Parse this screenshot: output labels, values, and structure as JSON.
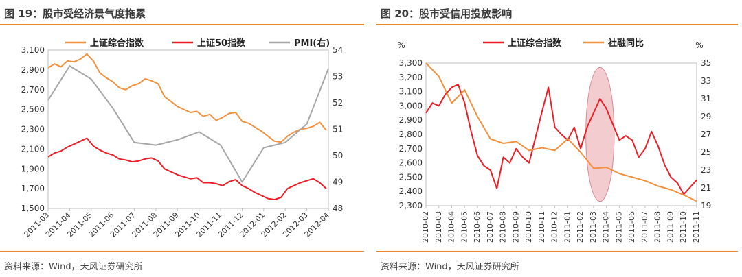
{
  "colors": {
    "orange": "#f2913d",
    "red": "#ee1c24",
    "gray": "#a6a6a6",
    "rule": "#e8872b",
    "ellipse": "#e8a3a7"
  },
  "left": {
    "title": "图 19：股市受经济景气度拖累",
    "source": "资料来源：Wind，天风证券研究所"
  },
  "right": {
    "title": "图 20：股市受信用投放影响",
    "source": "资料来源：Wind，天风证券研究所"
  },
  "chart_data": [
    {
      "type": "line",
      "y_left": {
        "ticks": [
          "1,500",
          "1,700",
          "1,900",
          "2,100",
          "2,300",
          "2,500",
          "2,700",
          "2,900",
          "3,100"
        ],
        "range": [
          1500,
          3100
        ]
      },
      "y_right": {
        "ticks": [
          "48",
          "49",
          "50",
          "51",
          "52",
          "53",
          "54"
        ],
        "range": [
          48,
          54
        ]
      },
      "x_ticks": [
        "2011-03",
        "2011-04",
        "2011-05",
        "2011-06",
        "2011-07",
        "2011-08",
        "2011-09",
        "2011-10",
        "2011-11",
        "2011-12",
        "2012-01",
        "2012-02",
        "2012-03",
        "2012-04"
      ],
      "x_range": [
        0,
        13
      ],
      "series": [
        {
          "name": "上证综合指数",
          "axis": "left",
          "color": "#f2913d",
          "x": [
            0,
            0.3,
            0.6,
            0.9,
            1.2,
            1.5,
            1.8,
            2.1,
            2.4,
            2.7,
            3.0,
            3.3,
            3.6,
            3.9,
            4.2,
            4.5,
            4.8,
            5.1,
            5.4,
            5.7,
            6.0,
            6.3,
            6.6,
            6.9,
            7.2,
            7.5,
            7.8,
            8.1,
            8.4,
            8.7,
            9.0,
            9.3,
            9.6,
            9.9,
            10.2,
            10.5,
            10.8,
            11.1,
            11.4,
            11.7,
            12.0,
            12.3,
            12.6,
            12.9
          ],
          "values": [
            2920,
            2960,
            2930,
            2990,
            2980,
            3010,
            3060,
            2990,
            2870,
            2820,
            2780,
            2720,
            2700,
            2740,
            2760,
            2810,
            2790,
            2760,
            2630,
            2580,
            2530,
            2500,
            2470,
            2480,
            2430,
            2450,
            2390,
            2420,
            2460,
            2470,
            2380,
            2360,
            2320,
            2280,
            2230,
            2180,
            2170,
            2230,
            2270,
            2300,
            2310,
            2330,
            2370,
            2290
          ]
        },
        {
          "name": "上证50指数",
          "axis": "left",
          "color": "#ee1c24",
          "x": [
            0,
            0.3,
            0.6,
            0.9,
            1.2,
            1.5,
            1.8,
            2.1,
            2.4,
            2.7,
            3.0,
            3.3,
            3.6,
            3.9,
            4.2,
            4.5,
            4.8,
            5.1,
            5.4,
            5.7,
            6.0,
            6.3,
            6.6,
            6.9,
            7.2,
            7.5,
            7.8,
            8.1,
            8.4,
            8.7,
            9.0,
            9.3,
            9.6,
            9.9,
            10.2,
            10.5,
            10.8,
            11.1,
            11.4,
            11.7,
            12.0,
            12.3,
            12.6,
            12.9
          ],
          "values": [
            2020,
            2060,
            2080,
            2120,
            2150,
            2180,
            2210,
            2130,
            2090,
            2060,
            2040,
            2000,
            1990,
            1970,
            1980,
            2000,
            2010,
            1980,
            1900,
            1870,
            1840,
            1820,
            1800,
            1810,
            1760,
            1760,
            1750,
            1730,
            1770,
            1790,
            1730,
            1700,
            1660,
            1630,
            1600,
            1590,
            1610,
            1700,
            1730,
            1760,
            1780,
            1800,
            1760,
            1700
          ]
        },
        {
          "name": "PMI(右)",
          "axis": "right",
          "color": "#a6a6a6",
          "x": [
            0,
            1,
            2,
            3,
            4,
            5,
            6,
            7,
            8,
            9,
            10,
            11,
            12,
            13
          ],
          "values": [
            52.1,
            53.4,
            52.9,
            51.8,
            50.5,
            50.4,
            50.6,
            50.9,
            50.4,
            49.0,
            50.3,
            50.5,
            51.2,
            53.3
          ]
        }
      ]
    },
    {
      "type": "line",
      "y_left": {
        "unit": "%",
        "ticks": [
          "2,300",
          "2,400",
          "2,500",
          "2,600",
          "2,700",
          "2,800",
          "2,900",
          "3,000",
          "3,100",
          "3,200",
          "3,300"
        ],
        "range": [
          2300,
          3300
        ]
      },
      "y_right": {
        "unit": "%",
        "ticks": [
          "19",
          "21",
          "23",
          "25",
          "27",
          "29",
          "31",
          "33",
          "35"
        ],
        "range": [
          19,
          35
        ]
      },
      "x_ticks": [
        "2010-02",
        "2010-03",
        "2010-04",
        "2010-05",
        "2010-06",
        "2010-07",
        "2010-08",
        "2010-09",
        "2010-10",
        "2010-11",
        "2010-12",
        "2011-01",
        "2011-02",
        "2011-03",
        "2011-04",
        "2011-05",
        "2011-06",
        "2011-07",
        "2011-08",
        "2011-09",
        "2011-10",
        "2011-11"
      ],
      "x_range": [
        0,
        21
      ],
      "highlight": {
        "cx": 13.5,
        "cy_value": 2800,
        "rx_months": 1.1,
        "ry_value": 470
      },
      "series": [
        {
          "name": "上证综合指数",
          "axis": "left",
          "color": "#ee1c24",
          "x": [
            0,
            0.5,
            1,
            1.5,
            2,
            2.5,
            3,
            3.5,
            4,
            4.5,
            5,
            5.5,
            6,
            6.5,
            7,
            7.5,
            8,
            8.5,
            9,
            9.5,
            10,
            10.5,
            11,
            11.5,
            12,
            12.5,
            13,
            13.5,
            14,
            14.5,
            15,
            15.5,
            16,
            16.5,
            17,
            17.5,
            18,
            18.5,
            19,
            19.5,
            20,
            20.5,
            21
          ],
          "values": [
            2950,
            3020,
            3000,
            3080,
            3130,
            3150,
            3020,
            2820,
            2650,
            2580,
            2550,
            2420,
            2640,
            2600,
            2700,
            2640,
            2600,
            2780,
            2960,
            3130,
            2850,
            2800,
            2760,
            2850,
            2700,
            2850,
            2950,
            3050,
            2980,
            2870,
            2760,
            2790,
            2760,
            2640,
            2700,
            2820,
            2720,
            2590,
            2500,
            2460,
            2380,
            2430,
            2480
          ]
        },
        {
          "name": "社融同比",
          "axis": "right",
          "color": "#f2913d",
          "x": [
            0,
            1,
            2,
            3,
            4,
            5,
            6,
            7,
            8,
            9,
            10,
            11,
            12,
            13,
            14,
            15,
            16,
            17,
            18,
            19,
            20,
            21
          ],
          "values": [
            35.0,
            33.5,
            30.5,
            32.0,
            29.0,
            26.5,
            26.0,
            26.2,
            25.2,
            25.5,
            25.2,
            26.5,
            25.0,
            23.2,
            23.3,
            22.6,
            22.2,
            21.8,
            21.2,
            20.8,
            20.2,
            19.5
          ]
        }
      ]
    }
  ]
}
